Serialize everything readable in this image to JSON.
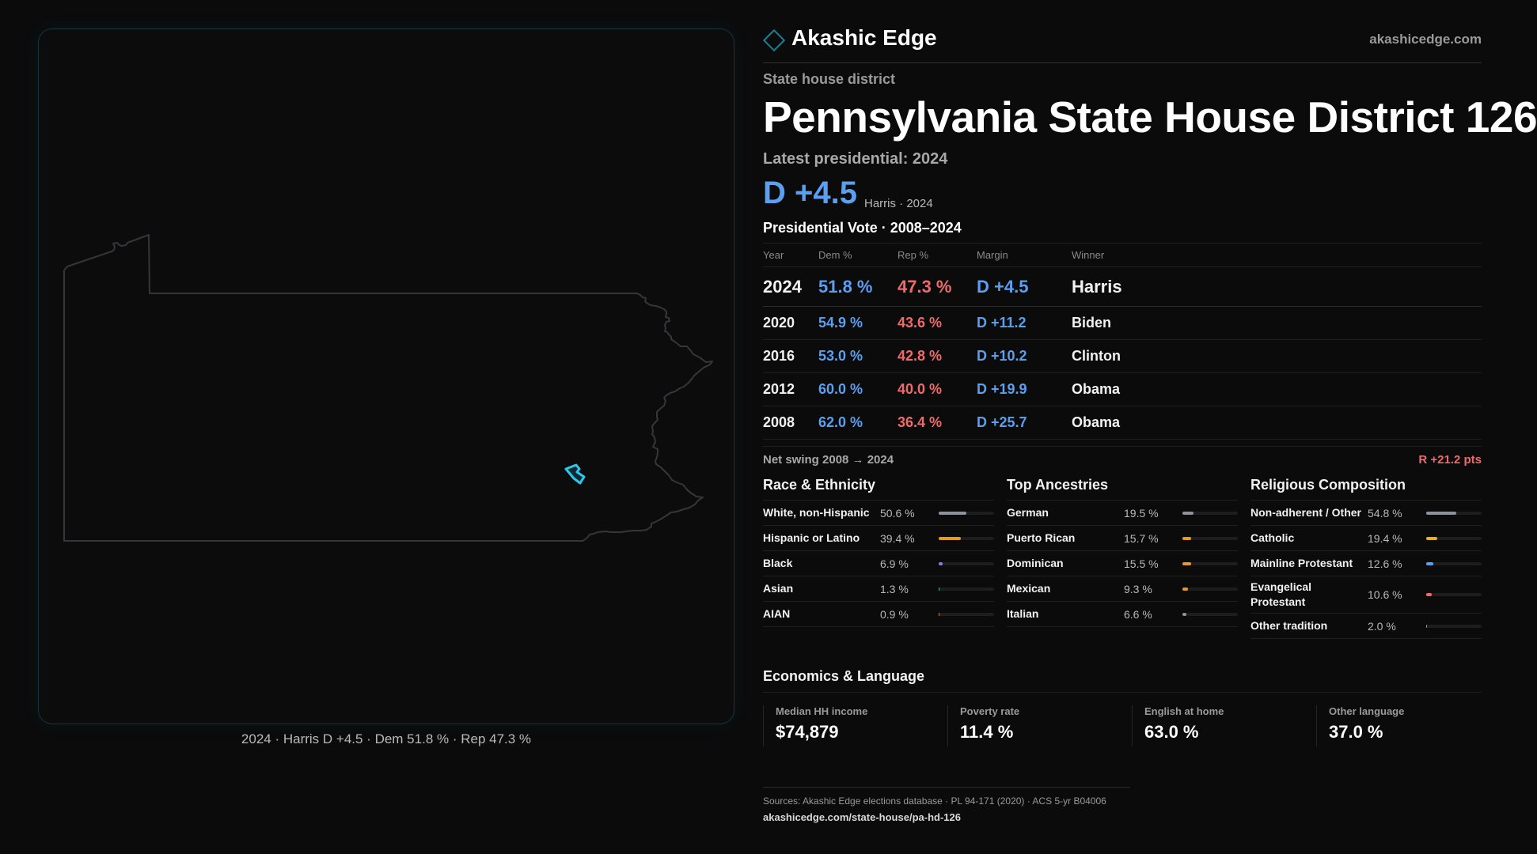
{
  "map": {
    "caption": "2024 · Harris D +4.5 · Dem 51.8 % · Rep 47.3 %"
  },
  "header": {
    "brand": "Akashic Edge",
    "site": "akashicedge.com"
  },
  "district": {
    "kicker": "State house district",
    "title": "Pennsylvania State House District 126",
    "latest_label": "Latest presidential: 2024",
    "margin": "D +4.5",
    "margin_sub": "Harris · 2024"
  },
  "vote_table": {
    "title": "Presidential Vote · 2008–2024",
    "headers": {
      "year": "Year",
      "dem": "Dem %",
      "rep": "Rep %",
      "margin": "Margin",
      "winner": "Winner"
    },
    "rows": [
      {
        "year": "2024",
        "dem": "51.8 %",
        "rep": "47.3 %",
        "margin": "D +4.5",
        "winner": "Harris"
      },
      {
        "year": "2020",
        "dem": "54.9 %",
        "rep": "43.6 %",
        "margin": "D +11.2",
        "winner": "Biden"
      },
      {
        "year": "2016",
        "dem": "53.0 %",
        "rep": "42.8 %",
        "margin": "D +10.2",
        "winner": "Clinton"
      },
      {
        "year": "2012",
        "dem": "60.0 %",
        "rep": "40.0 %",
        "margin": "D +19.9",
        "winner": "Obama"
      },
      {
        "year": "2008",
        "dem": "62.0 %",
        "rep": "36.4 %",
        "margin": "D +25.7",
        "winner": "Obama"
      }
    ],
    "swing_label": "Net swing 2008 → 2024",
    "swing_value": "R +21.2 pts"
  },
  "race": {
    "title": "Race & Ethnicity",
    "items": [
      {
        "label": "White, non-Hispanic",
        "pct": "50.6 %",
        "value": 50.6,
        "color": "#8d939e"
      },
      {
        "label": "Hispanic or Latino",
        "pct": "39.4 %",
        "value": 39.4,
        "color": "#e39a2a"
      },
      {
        "label": "Black",
        "pct": "6.9 %",
        "value": 6.9,
        "color": "#8c7fd6"
      },
      {
        "label": "Asian",
        "pct": "1.3 %",
        "value": 1.3,
        "color": "#3fb884"
      },
      {
        "label": "AIAN",
        "pct": "0.9 %",
        "value": 0.9,
        "color": "#d9774a"
      }
    ]
  },
  "ancestry": {
    "title": "Top Ancestries",
    "items": [
      {
        "label": "German",
        "pct": "19.5 %",
        "value": 19.5,
        "color": "#8d939e"
      },
      {
        "label": "Puerto Rican",
        "pct": "15.7 %",
        "value": 15.7,
        "color": "#e39a2a"
      },
      {
        "label": "Dominican",
        "pct": "15.5 %",
        "value": 15.5,
        "color": "#e39a2a"
      },
      {
        "label": "Mexican",
        "pct": "9.3 %",
        "value": 9.3,
        "color": "#e39a2a"
      },
      {
        "label": "Italian",
        "pct": "6.6 %",
        "value": 6.6,
        "color": "#8d939e"
      }
    ]
  },
  "religion": {
    "title": "Religious Composition",
    "items": [
      {
        "label": "Non-adherent / Other",
        "pct": "54.8 %",
        "value": 54.8,
        "color": "#8d939e"
      },
      {
        "label": "Catholic",
        "pct": "19.4 %",
        "value": 19.4,
        "color": "#e3b02a"
      },
      {
        "label": "Mainline Protestant",
        "pct": "12.6 %",
        "value": 12.6,
        "color": "#5a9ff0"
      },
      {
        "label": "Evangelical Protestant",
        "pct": "10.6 %",
        "value": 10.6,
        "color": "#ef6b6b"
      },
      {
        "label": "Other tradition",
        "pct": "2.0 %",
        "value": 2.0,
        "color": "#8d939e"
      }
    ]
  },
  "economics": {
    "title": "Economics & Language",
    "items": [
      {
        "label": "Median HH income",
        "value": "$74,879"
      },
      {
        "label": "Poverty rate",
        "value": "11.4 %"
      },
      {
        "label": "English at home",
        "value": "63.0 %"
      },
      {
        "label": "Other language",
        "value": "37.0 %"
      }
    ]
  },
  "footer": {
    "sources": "Sources: Akashic Edge elections database · PL 94-171 (2020) · ACS 5-yr B04006",
    "url": "akashicedge.com/state-house/pa-hd-126"
  },
  "colors": {
    "dem": "#5a9ff0",
    "rep": "#ef6b6b",
    "district_outline": "#2fc7e8"
  }
}
